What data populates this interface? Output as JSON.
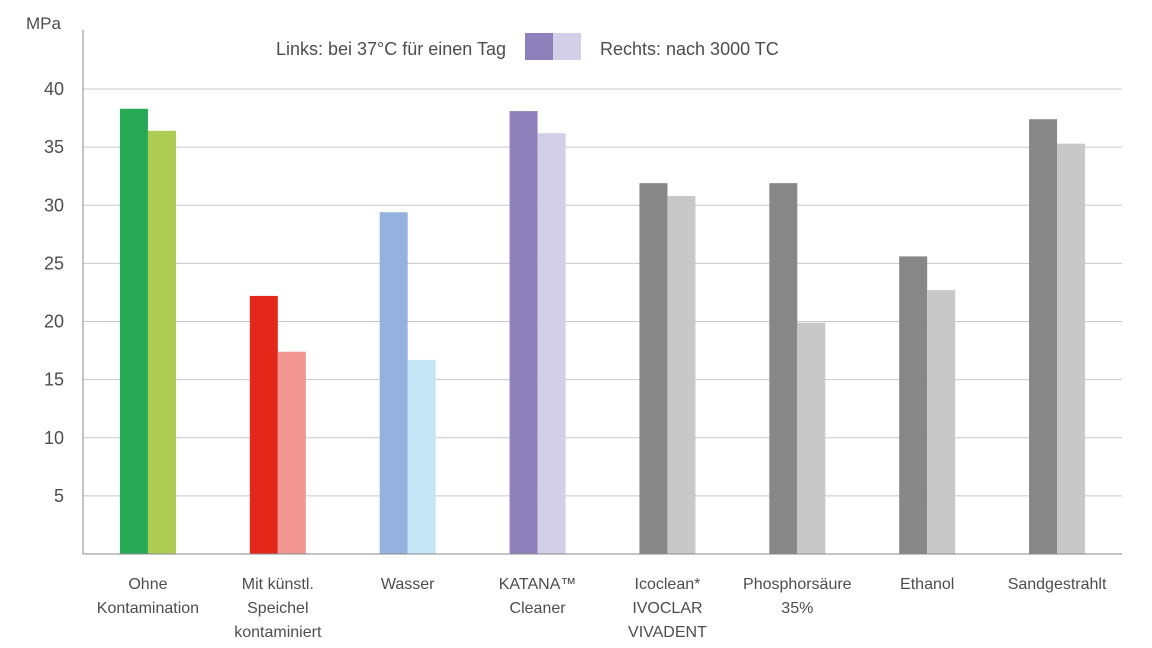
{
  "chart_data": {
    "type": "bar",
    "ylabel": "MPa",
    "ylim": [
      0,
      41
    ],
    "yticks": [
      5,
      10,
      15,
      20,
      25,
      30,
      35,
      40
    ],
    "grid": "horizontal",
    "legend": {
      "position": "top",
      "left_text": "Links: bei 37°C für einen Tag",
      "right_text": "Rechts: nach 3000 TC",
      "swatch_colors": [
        "#8e80bb",
        "#d3cfe8"
      ]
    },
    "categories": [
      {
        "label": [
          "Ohne",
          "Kontamination"
        ],
        "values": [
          38.3,
          36.4
        ],
        "colors": [
          "#27a955",
          "#aecc52"
        ]
      },
      {
        "label": [
          "Mit künstl.",
          "Speichel",
          "kontaminiert"
        ],
        "values": [
          22.2,
          17.4
        ],
        "colors": [
          "#e32718",
          "#f29590"
        ]
      },
      {
        "label": [
          "Wasser"
        ],
        "values": [
          29.4,
          16.7
        ],
        "colors": [
          "#95b1dd",
          "#c5e4f6"
        ]
      },
      {
        "label": [
          "KATANA™",
          "Cleaner"
        ],
        "values": [
          38.1,
          36.2
        ],
        "colors": [
          "#8e80bb",
          "#d3cfe8"
        ]
      },
      {
        "label": [
          "Icoclean*",
          "IVOCLAR",
          "VIVADENT"
        ],
        "values": [
          31.9,
          30.8
        ],
        "colors": [
          "#878787",
          "#c8c8c8"
        ]
      },
      {
        "label": [
          "Phosphorsäure",
          "35%"
        ],
        "values": [
          31.9,
          19.9
        ],
        "colors": [
          "#878787",
          "#c8c8c8"
        ]
      },
      {
        "label": [
          "Ethanol"
        ],
        "values": [
          25.6,
          22.7
        ],
        "colors": [
          "#878787",
          "#c8c8c8"
        ]
      },
      {
        "label": [
          "Sandgestrahlt"
        ],
        "values": [
          37.4,
          35.3
        ],
        "colors": [
          "#878787",
          "#c8c8c8"
        ]
      }
    ]
  }
}
